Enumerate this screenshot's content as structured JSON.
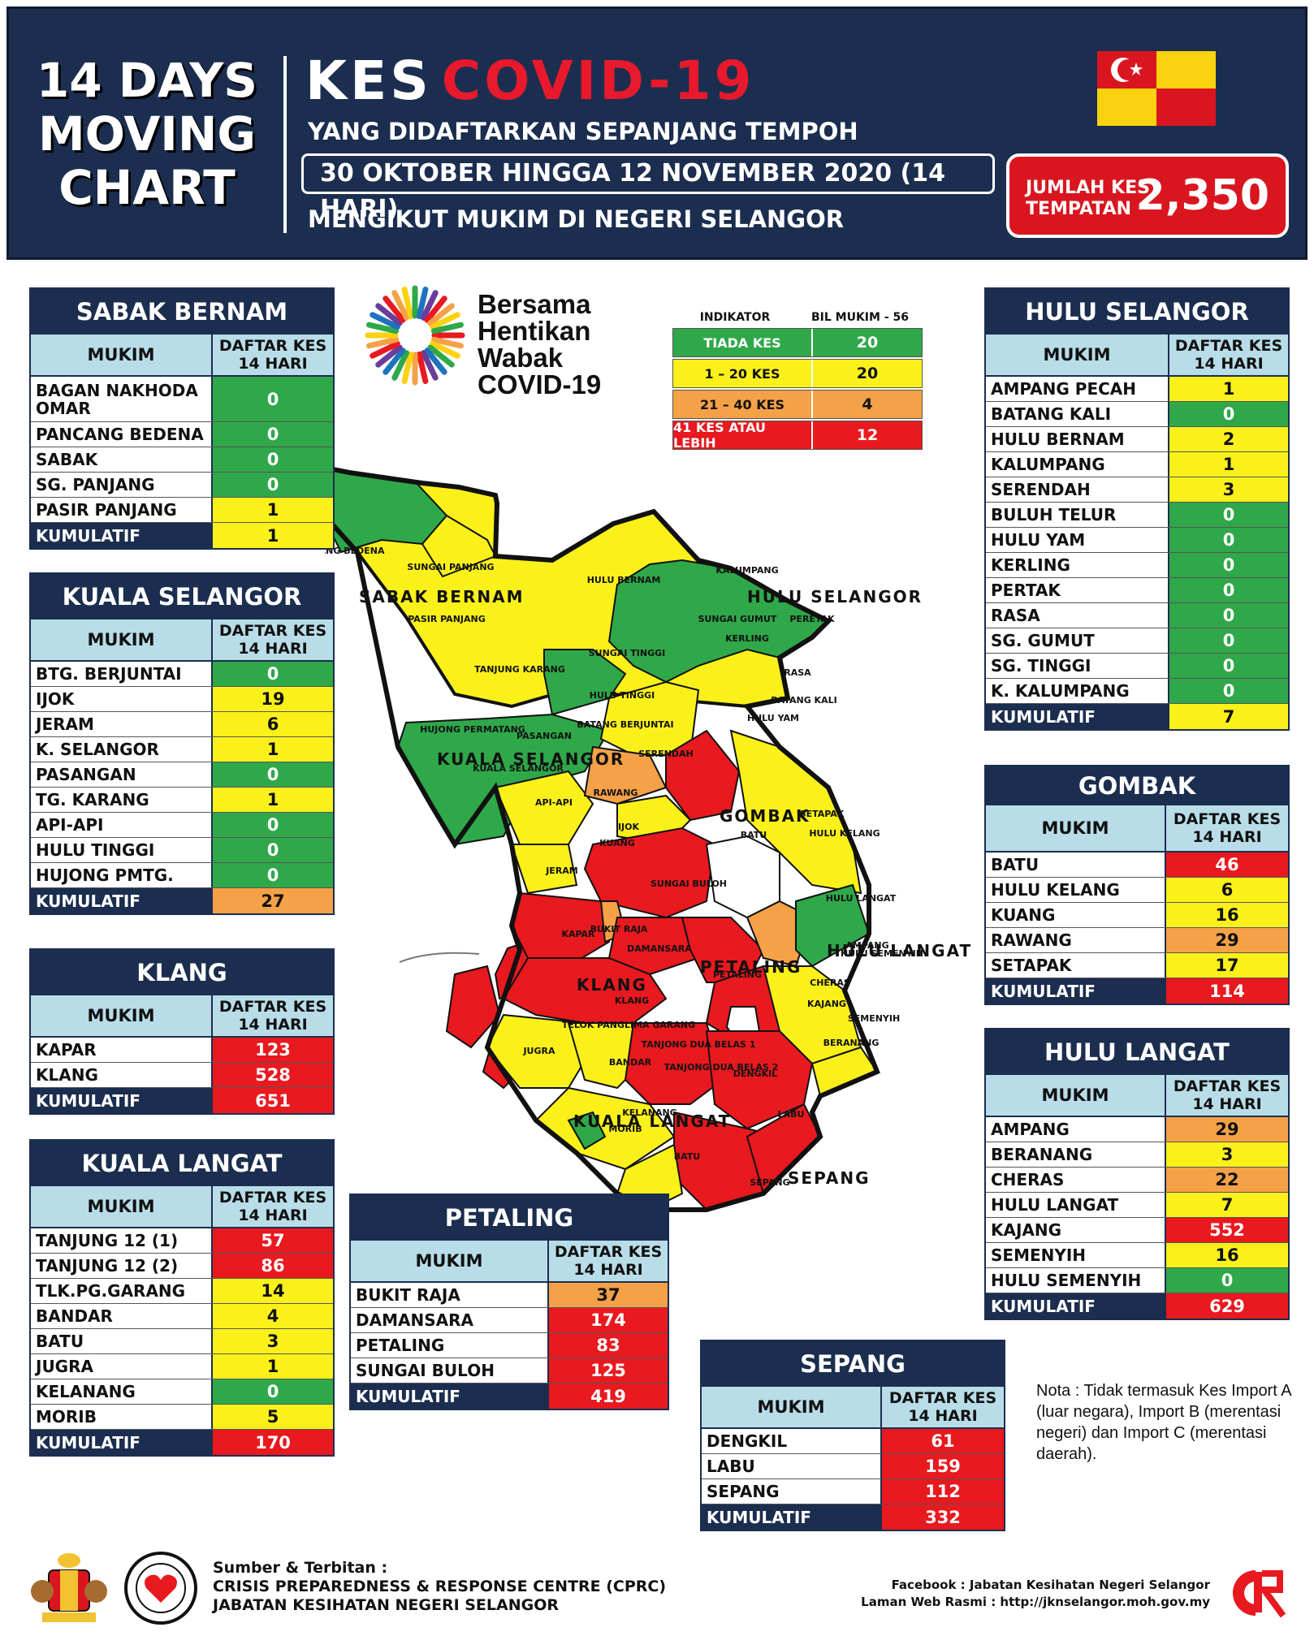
{
  "header": {
    "left_lines": [
      "14 DAYS",
      "MOVING",
      "CHART"
    ],
    "kes": "KES",
    "covid": "COVID-19",
    "subtitle1": "YANG DIDAFTARKAN SEPANJANG TEMPOH",
    "dates": "30 OKTOBER HINGGA 12 NOVEMBER 2020 (14 HARI)",
    "subtitle2": "MENGIKUT MUKIM DI NEGERI SELANGOR",
    "total_label_1": "JUMLAH KES",
    "total_label_2": "TEMPATAN",
    "total_value": "2,350"
  },
  "bersama": {
    "line1": "Bersama",
    "line2": "Hentikan",
    "line3": "Wabak",
    "line4": "COVID-19"
  },
  "indicator": {
    "col1": "INDIKATOR",
    "col2": "BIL MUKIM - 56",
    "rows": [
      {
        "label": "TIADA KES",
        "value": "20",
        "color": "#2fa84a"
      },
      {
        "label": "1 – 20 KES",
        "value": "20",
        "color": "#fbf11a"
      },
      {
        "label": "21 – 40 KES",
        "value": "4",
        "color": "#f5a147"
      },
      {
        "label": "41 KES ATAU LEBIH",
        "value": "12",
        "color": "#e8191f"
      }
    ]
  },
  "common": {
    "col_mukim": "MUKIM",
    "col_daftar_1": "DAFTAR KES",
    "col_daftar_2": "14 HARI",
    "kumulatif": "KUMULATIF"
  },
  "tables": {
    "sabak_bernam": {
      "title": "SABAK BERNAM",
      "rows": [
        {
          "mukim": "BAGAN NAKHODA OMAR",
          "value": "0",
          "level": "green"
        },
        {
          "mukim": "PANCANG BEDENA",
          "value": "0",
          "level": "green"
        },
        {
          "mukim": "SABAK",
          "value": "0",
          "level": "green"
        },
        {
          "mukim": "SG. PANJANG",
          "value": "0",
          "level": "green"
        },
        {
          "mukim": "PASIR PANJANG",
          "value": "1",
          "level": "yellow"
        }
      ],
      "kumulatif": "1",
      "kum_level": "yellow"
    },
    "kuala_selangor": {
      "title": "KUALA SELANGOR",
      "rows": [
        {
          "mukim": "BTG. BERJUNTAI",
          "value": "0",
          "level": "green"
        },
        {
          "mukim": "IJOK",
          "value": "19",
          "level": "yellow"
        },
        {
          "mukim": "JERAM",
          "value": "6",
          "level": "yellow"
        },
        {
          "mukim": "K. SELANGOR",
          "value": "1",
          "level": "yellow"
        },
        {
          "mukim": "PASANGAN",
          "value": "0",
          "level": "green"
        },
        {
          "mukim": "TG. KARANG",
          "value": "1",
          "level": "yellow"
        },
        {
          "mukim": "API-API",
          "value": "0",
          "level": "green"
        },
        {
          "mukim": "HULU TINGGI",
          "value": "0",
          "level": "green"
        },
        {
          "mukim": "HUJONG PMTG.",
          "value": "0",
          "level": "green"
        }
      ],
      "kumulatif": "27",
      "kum_level": "orange"
    },
    "klang": {
      "title": "KLANG",
      "rows": [
        {
          "mukim": "KAPAR",
          "value": "123",
          "level": "red"
        },
        {
          "mukim": "KLANG",
          "value": "528",
          "level": "red"
        }
      ],
      "kumulatif": "651",
      "kum_level": "red"
    },
    "kuala_langat": {
      "title": "KUALA LANGAT",
      "rows": [
        {
          "mukim": "TANJUNG 12 (1)",
          "value": "57",
          "level": "red"
        },
        {
          "mukim": "TANJUNG 12 (2)",
          "value": "86",
          "level": "red"
        },
        {
          "mukim": "TLK.PG.GARANG",
          "value": "14",
          "level": "yellow"
        },
        {
          "mukim": "BANDAR",
          "value": "4",
          "level": "yellow"
        },
        {
          "mukim": "BATU",
          "value": "3",
          "level": "yellow"
        },
        {
          "mukim": "JUGRA",
          "value": "1",
          "level": "yellow"
        },
        {
          "mukim": "KELANANG",
          "value": "0",
          "level": "green"
        },
        {
          "mukim": "MORIB",
          "value": "5",
          "level": "yellow"
        }
      ],
      "kumulatif": "170",
      "kum_level": "red"
    },
    "petaling": {
      "title": "PETALING",
      "rows": [
        {
          "mukim": "BUKIT RAJA",
          "value": "37",
          "level": "orange"
        },
        {
          "mukim": "DAMANSARA",
          "value": "174",
          "level": "red"
        },
        {
          "mukim": "PETALING",
          "value": "83",
          "level": "red"
        },
        {
          "mukim": "SUNGAI BULOH",
          "value": "125",
          "level": "red"
        }
      ],
      "kumulatif": "419",
      "kum_level": "red"
    },
    "sepang": {
      "title": "SEPANG",
      "rows": [
        {
          "mukim": "DENGKIL",
          "value": "61",
          "level": "red"
        },
        {
          "mukim": "LABU",
          "value": "159",
          "level": "red"
        },
        {
          "mukim": "SEPANG",
          "value": "112",
          "level": "red"
        }
      ],
      "kumulatif": "332",
      "kum_level": "red"
    },
    "hulu_selangor": {
      "title": "HULU SELANGOR",
      "rows": [
        {
          "mukim": "AMPANG PECAH",
          "value": "1",
          "level": "yellow"
        },
        {
          "mukim": "BATANG KALI",
          "value": "0",
          "level": "green"
        },
        {
          "mukim": "HULU BERNAM",
          "value": "2",
          "level": "yellow"
        },
        {
          "mukim": "KALUMPANG",
          "value": "1",
          "level": "yellow"
        },
        {
          "mukim": "SERENDAH",
          "value": "3",
          "level": "yellow"
        },
        {
          "mukim": "BULUH TELUR",
          "value": "0",
          "level": "green"
        },
        {
          "mukim": "HULU YAM",
          "value": "0",
          "level": "green"
        },
        {
          "mukim": "KERLING",
          "value": "0",
          "level": "green"
        },
        {
          "mukim": "PERTAK",
          "value": "0",
          "level": "green"
        },
        {
          "mukim": "RASA",
          "value": "0",
          "level": "green"
        },
        {
          "mukim": "SG. GUMUT",
          "value": "0",
          "level": "green"
        },
        {
          "mukim": "SG. TINGGI",
          "value": "0",
          "level": "green"
        },
        {
          "mukim": "K. KALUMPANG",
          "value": "0",
          "level": "green"
        }
      ],
      "kumulatif": "7",
      "kum_level": "yellow"
    },
    "gombak": {
      "title": "GOMBAK",
      "rows": [
        {
          "mukim": "BATU",
          "value": "46",
          "level": "red"
        },
        {
          "mukim": "HULU KELANG",
          "value": "6",
          "level": "yellow"
        },
        {
          "mukim": "KUANG",
          "value": "16",
          "level": "yellow"
        },
        {
          "mukim": "RAWANG",
          "value": "29",
          "level": "orange"
        },
        {
          "mukim": "SETAPAK",
          "value": "17",
          "level": "yellow"
        }
      ],
      "kumulatif": "114",
      "kum_level": "red"
    },
    "hulu_langat": {
      "title": "HULU LANGAT",
      "rows": [
        {
          "mukim": "AMPANG",
          "value": "29",
          "level": "orange"
        },
        {
          "mukim": "BERANANG",
          "value": "3",
          "level": "yellow"
        },
        {
          "mukim": "CHERAS",
          "value": "22",
          "level": "orange"
        },
        {
          "mukim": "HULU LANGAT",
          "value": "7",
          "level": "yellow"
        },
        {
          "mukim": "KAJANG",
          "value": "552",
          "level": "red"
        },
        {
          "mukim": "SEMENYIH",
          "value": "16",
          "level": "yellow"
        },
        {
          "mukim": "HULU SEMENYIH",
          "value": "0",
          "level": "green"
        }
      ],
      "kumulatif": "629",
      "kum_level": "red"
    }
  },
  "map": {
    "districts": [
      "SABAK BERNAM",
      "HULU SELANGOR",
      "KUALA SELANGOR",
      "GOMBAK",
      "HULU LANGAT",
      "PETALING",
      "KLANG",
      "KUALA LANGAT",
      "SEPANG"
    ],
    "mukims": [
      "PANCHANG BEDENA",
      "SUNGAI PANJANG",
      "PASIR PANJANG",
      "HULU BERNAM",
      "KALUMPANG",
      "SUNGAI GUMUT",
      "KERLING",
      "PERETAK",
      "SUNGAI TINGGI",
      "RASA",
      "TANJUNG KARANG",
      "HULU TINGGI",
      "BATANG KALI",
      "HULU YAM",
      "BATANG BERJUNTAI",
      "HUJONG PERMATANG",
      "PASANGAN",
      "SERENDAH",
      "KUALA SELANGOR",
      "RAWANG",
      "API-API",
      "IJOK",
      "KUANG",
      "BATU",
      "SETAPAK",
      "HULU KELANG",
      "JERAM",
      "SUNGAI BULOH",
      "HULU LANGAT",
      "KAPAR",
      "BUKIT RAJA",
      "DAMANSARA",
      "AMPANG",
      "PETALING",
      "CHERAS",
      "HULU SEMENYIH",
      "KLANG",
      "KAJANG",
      "SEMENYIH",
      "TELOK PANGLIMA GARANG",
      "TANJONG DUA BELAS 1",
      "JUGRA",
      "BANDAR",
      "TANJONG DUA BELAS 2",
      "DENGKIL",
      "BERANANG",
      "KELANANG",
      "MORIB",
      "LABU",
      "BATU",
      "SEPANG"
    ]
  },
  "note": "Nota : Tidak termasuk Kes Import A (luar negara), Import B (merentasi negeri) dan Import C (merentasi daerah).",
  "footer": {
    "src_line1": "Sumber & Terbitan :",
    "src_line2": "CRISIS PREPAREDNESS & RESPONSE CENTRE (CPRC)",
    "src_line3": "JABATAN KESIHATAN NEGERI SELANGOR",
    "right_line1": "Facebook : Jabatan Kesihatan Negeri Selangor",
    "right_line2": "Laman Web Rasmi : http://jknselangor.moh.gov.my"
  },
  "colors": {
    "navy": "#1c2e4f",
    "green": "#2fa84a",
    "yellow": "#fbf11a",
    "orange": "#f5a147",
    "red": "#e8191f"
  }
}
